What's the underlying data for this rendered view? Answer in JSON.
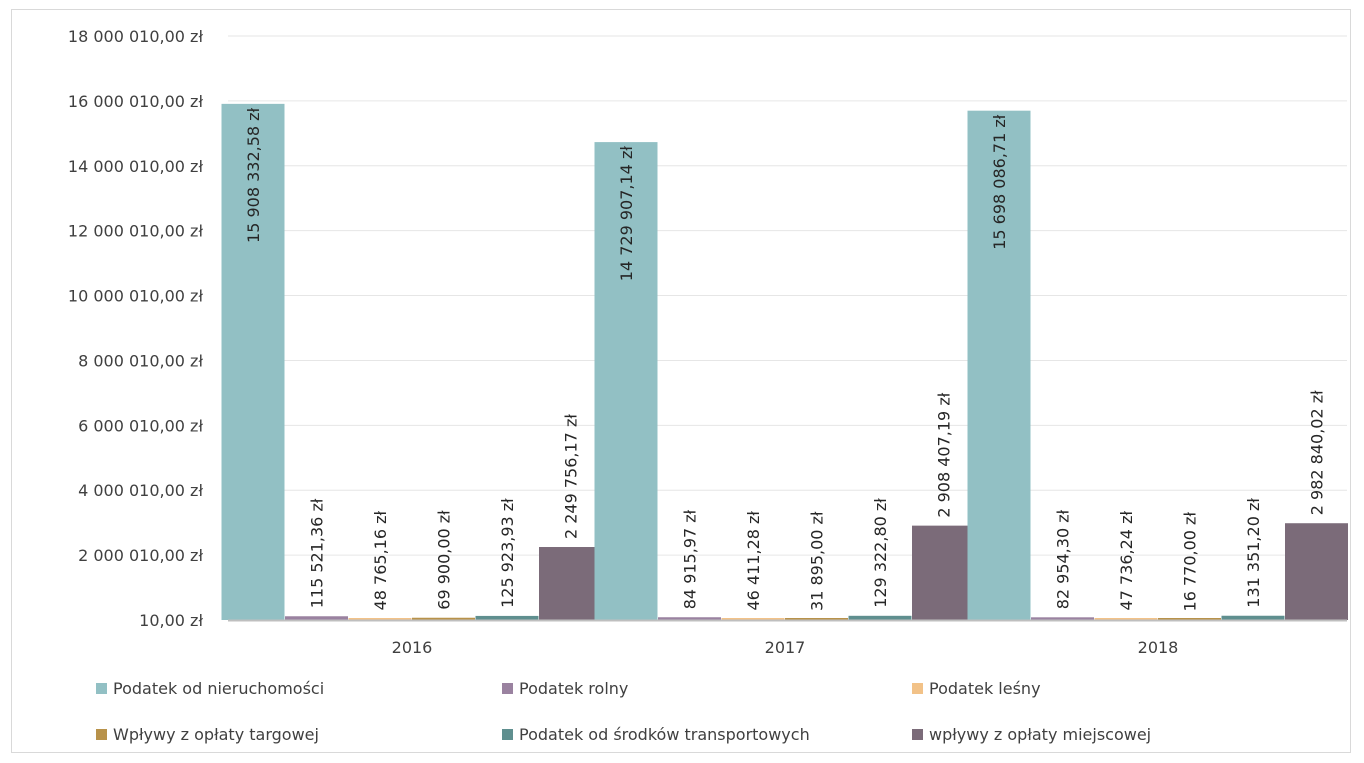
{
  "chart_data": {
    "type": "bar",
    "title": "",
    "xlabel": "",
    "ylabel": "",
    "categories": [
      "2016",
      "2017",
      "2018"
    ],
    "ylim": [
      10,
      18000010
    ],
    "yticks": [
      10,
      2000010,
      4000010,
      6000010,
      8000010,
      10000010,
      12000010,
      14000010,
      16000010,
      18000010
    ],
    "ytick_labels": [
      "10,00 zł",
      "2 000 010,00 zł",
      "4 000 010,00 zł",
      "6 000 010,00 zł",
      "8 000 010,00 zł",
      "10 000 010,00 zł",
      "12 000 010,00 zł",
      "14 000 010,00 zł",
      "16 000 010,00 zł",
      "18 000 010,00 zł"
    ],
    "grid": true,
    "legend_position": "bottom",
    "series": [
      {
        "name": "Podatek od nieruchomości",
        "color": "#92c0c4",
        "values": [
          15908332.58,
          14729907.14,
          15698086.71
        ],
        "labels": [
          "15 908 332,58 zł",
          "14 729 907,14 zł",
          "15 698 086,71 zł"
        ]
      },
      {
        "name": "Podatek rolny",
        "color": "#9a82a0",
        "values": [
          115521.36,
          84915.97,
          82954.3
        ],
        "labels": [
          "115 521,36 zł",
          "84 915,97 zł",
          "82 954,30 zł"
        ]
      },
      {
        "name": "Podatek leśny",
        "color": "#f2c288",
        "values": [
          48765.16,
          46411.28,
          47736.24
        ],
        "labels": [
          "48 765,16 zł",
          "46 411,28 zł",
          "47 736,24 zł"
        ]
      },
      {
        "name": "Wpływy z opłaty targowej",
        "color": "#b8924a",
        "values": [
          69900.0,
          31895.0,
          16770.0
        ],
        "labels": [
          "69 900,00 zł",
          "31 895,00 zł",
          "16 770,00 zł"
        ]
      },
      {
        "name": "Podatek od środków transportowych",
        "color": "#5f8f8f",
        "values": [
          125923.93,
          129322.8,
          131351.2
        ],
        "labels": [
          "125 923,93 zł",
          "129 322,80 zł",
          "131 351,20 zł"
        ]
      },
      {
        "name": "wpływy z opłaty miejscowej",
        "color": "#7b6b79",
        "values": [
          2249756.17,
          2908407.19,
          2982840.02
        ],
        "labels": [
          "2 249 756,17 zł",
          "2 908 407,19 zł",
          "2 982 840,02 zł"
        ]
      }
    ]
  }
}
